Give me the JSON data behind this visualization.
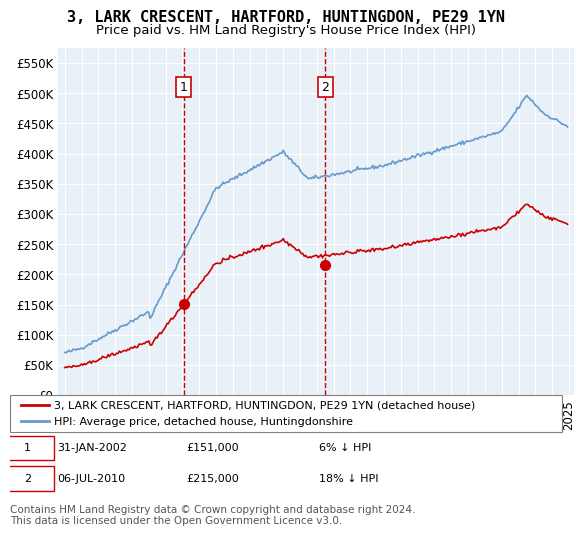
{
  "title": "3, LARK CRESCENT, HARTFORD, HUNTINGDON, PE29 1YN",
  "subtitle": "Price paid vs. HM Land Registry's House Price Index (HPI)",
  "xlabel": "",
  "ylabel": "",
  "ylim": [
    0,
    575000
  ],
  "yticks": [
    0,
    50000,
    100000,
    150000,
    200000,
    250000,
    300000,
    350000,
    400000,
    450000,
    500000,
    550000
  ],
  "ytick_labels": [
    "£0",
    "£50K",
    "£100K",
    "£150K",
    "£200K",
    "£250K",
    "£300K",
    "£350K",
    "£400K",
    "£450K",
    "£500K",
    "£550K"
  ],
  "background_color": "#ffffff",
  "plot_bg_color": "#e8f0f8",
  "grid_color": "#ffffff",
  "red_line_color": "#cc0000",
  "blue_line_color": "#6699cc",
  "sale1": {
    "date": 2002.08,
    "price": 151000,
    "label": "1"
  },
  "sale2": {
    "date": 2010.51,
    "price": 215000,
    "label": "2"
  },
  "vline_color": "#cc0000",
  "marker_color": "#cc0000",
  "legend_red_label": "3, LARK CRESCENT, HARTFORD, HUNTINGDON, PE29 1YN (detached house)",
  "legend_blue_label": "HPI: Average price, detached house, Huntingdonshire",
  "table_row1": [
    "1",
    "31-JAN-2002",
    "£151,000",
    "6% ↓ HPI"
  ],
  "table_row2": [
    "2",
    "06-JUL-2010",
    "£215,000",
    "18% ↓ HPI"
  ],
  "footnote": "Contains HM Land Registry data © Crown copyright and database right 2024.\nThis data is licensed under the Open Government Licence v3.0.",
  "title_fontsize": 11,
  "subtitle_fontsize": 9.5,
  "tick_fontsize": 8.5,
  "legend_fontsize": 8,
  "footnote_fontsize": 7.5
}
